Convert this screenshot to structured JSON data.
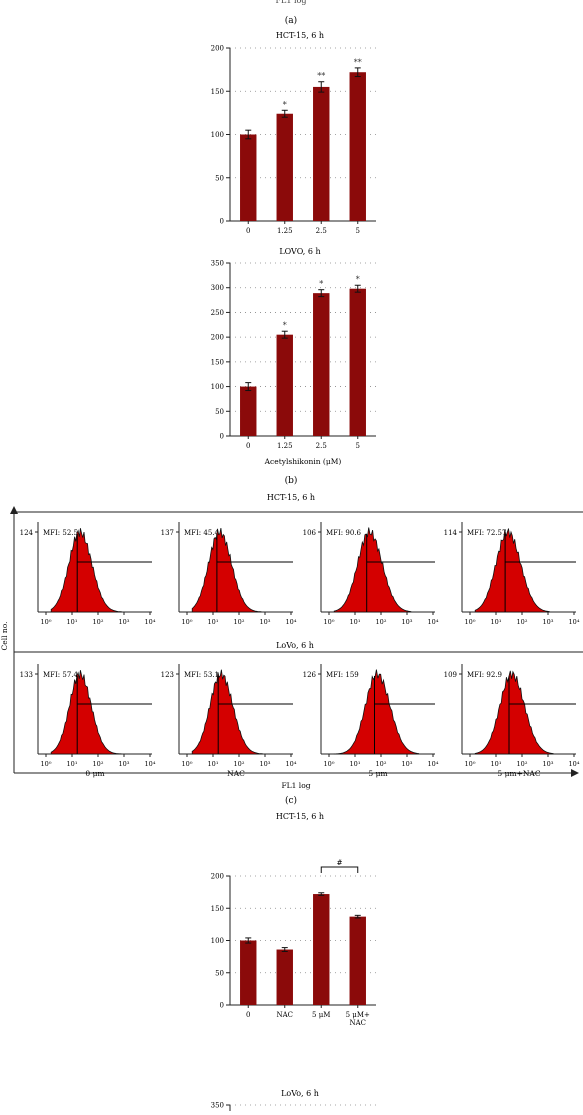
{
  "colors": {
    "bar": "#8b0a0a",
    "hist": "#d40000",
    "axis": "#222222"
  },
  "panel_labels": {
    "top_axis": "FL1 log",
    "a": "(a)",
    "b": "(b)",
    "c": "(c)"
  },
  "chart_data": [
    {
      "id": "b1",
      "type": "bar",
      "title": "HCT-15, 6 h",
      "categories": [
        "0",
        "1.25",
        "2.5",
        "5"
      ],
      "values": [
        100,
        124,
        155,
        172
      ],
      "errors": [
        5,
        4,
        6,
        5
      ],
      "annotations": [
        "",
        "*",
        "**",
        "**"
      ],
      "ylim": [
        0,
        200
      ],
      "yticks": [
        0,
        50,
        100,
        150,
        200
      ],
      "xlabel": "",
      "ylabel": "",
      "grid": "dotted-y"
    },
    {
      "id": "b2",
      "type": "bar",
      "title": "LOVO, 6 h",
      "categories": [
        "0",
        "1.25",
        "2.5",
        "5"
      ],
      "values": [
        100,
        205,
        289,
        298
      ],
      "errors": [
        8,
        7,
        7,
        7
      ],
      "annotations": [
        "",
        "*",
        "*",
        "*"
      ],
      "ylim": [
        0,
        350
      ],
      "yticks": [
        0,
        50,
        100,
        150,
        200,
        250,
        300,
        350
      ],
      "xlabel": "Acetylshikonin (μM)",
      "ylabel": "",
      "grid": "dotted-y"
    },
    {
      "id": "hist",
      "type": "area",
      "title_top": "HCT-15, 6 h",
      "title_mid": "LoVo, 6 h",
      "ylabel": "Cell no.",
      "xlabel": "FL1 log",
      "xtick_labels": [
        "10⁰",
        "10¹",
        "10²",
        "10³",
        "10⁴"
      ],
      "columns": [
        "0 μm",
        "NAC",
        "5 μm",
        "5 μm+NAC"
      ],
      "rows": [
        [
          {
            "ymax": "124",
            "mfi": "MFI: 52.5",
            "peak": 1.3,
            "width": 0.42,
            "skew": 0.1
          },
          {
            "ymax": "137",
            "mfi": "MFI: 45.4",
            "peak": 1.25,
            "width": 0.42,
            "skew": 0.1
          },
          {
            "ymax": "106",
            "mfi": "MFI: 90.6",
            "peak": 1.55,
            "width": 0.45,
            "skew": 0.1
          },
          {
            "ymax": "114",
            "mfi": "MFI: 72.57",
            "peak": 1.45,
            "width": 0.45,
            "skew": 0.1
          }
        ],
        [
          {
            "ymax": "133",
            "mfi": "MFI: 57.4",
            "peak": 1.3,
            "width": 0.4,
            "skew": 0.1
          },
          {
            "ymax": "123",
            "mfi": "MFI: 53.1",
            "peak": 1.3,
            "width": 0.42,
            "skew": 0.1
          },
          {
            "ymax": "126",
            "mfi": "MFI: 159",
            "peak": 1.85,
            "width": 0.45,
            "skew": 0.1
          },
          {
            "ymax": "109",
            "mfi": "MFI: 92.9",
            "peak": 1.6,
            "width": 0.45,
            "skew": 0.1
          }
        ]
      ]
    },
    {
      "id": "c1",
      "type": "bar",
      "title": "HCT-15, 6 h",
      "categories": [
        "0",
        "NAC",
        "5 μM",
        "5 μM+\nNAC"
      ],
      "values": [
        100,
        86,
        172,
        137
      ],
      "errors": [
        4,
        3,
        2,
        2
      ],
      "annotations": [
        "",
        "",
        "",
        ""
      ],
      "bracket": {
        "from": 2,
        "to": 3,
        "label": "#"
      },
      "ylim": [
        0,
        200
      ],
      "yticks": [
        0,
        50,
        100,
        150,
        200
      ],
      "xlabel": "",
      "ylabel": "",
      "grid": "dotted-y"
    },
    {
      "id": "c2",
      "type": "bar",
      "title": "LoVo, 6 h",
      "categories": [],
      "values": [],
      "errors": [],
      "annotations": [],
      "bracket": {
        "from": 2,
        "to": 3,
        "label": "#"
      },
      "ylim": [
        0,
        350
      ],
      "yticks": [
        350
      ],
      "xlabel": "",
      "ylabel": "",
      "grid": "dotted-y"
    }
  ]
}
